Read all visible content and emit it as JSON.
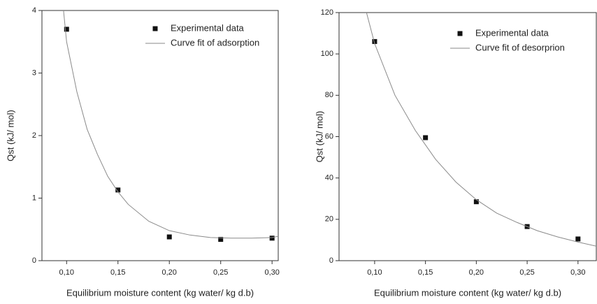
{
  "chart_data": [
    {
      "type": "scatter",
      "xlabel": "Equilibrium moisture content (kg water/ kg d.b)",
      "ylabel": "Qst (kJ/ mol)",
      "xlim": [
        0.076,
        0.306
      ],
      "ylim": [
        0,
        4
      ],
      "xticks": [
        {
          "value": 0.1,
          "label": "0,10"
        },
        {
          "value": 0.15,
          "label": "0,15"
        },
        {
          "value": 0.2,
          "label": "0,20"
        },
        {
          "value": 0.25,
          "label": "0,25"
        },
        {
          "value": 0.3,
          "label": "0,30"
        }
      ],
      "yticks": [
        0,
        1,
        2,
        3,
        4
      ],
      "legend": "upper-right",
      "series": [
        {
          "name": "Experimental data",
          "color": "#111111",
          "style": "markers",
          "x": [
            0.1,
            0.15,
            0.2,
            0.25,
            0.3
          ],
          "values": [
            3.7,
            1.13,
            0.38,
            0.34,
            0.36
          ]
        },
        {
          "name": "Curve fit of adsorption",
          "color": "#8a8a8a",
          "style": "line",
          "x": [
            0.097,
            0.1,
            0.11,
            0.12,
            0.13,
            0.14,
            0.15,
            0.16,
            0.18,
            0.2,
            0.22,
            0.24,
            0.26,
            0.28,
            0.3,
            0.306
          ],
          "values": [
            4.0,
            3.5,
            2.7,
            2.1,
            1.7,
            1.35,
            1.1,
            0.9,
            0.63,
            0.48,
            0.41,
            0.37,
            0.36,
            0.36,
            0.37,
            0.39
          ]
        }
      ]
    },
    {
      "type": "scatter",
      "xlabel": "Equilibrium moisture content (kg water/ kg d.b)",
      "ylabel": "Qst (kJ/ mol)",
      "xlim": [
        0.065,
        0.318
      ],
      "ylim": [
        0,
        120
      ],
      "xticks": [
        {
          "value": 0.1,
          "label": "0,10"
        },
        {
          "value": 0.15,
          "label": "0,15"
        },
        {
          "value": 0.2,
          "label": "0,20"
        },
        {
          "value": 0.25,
          "label": "0,25"
        },
        {
          "value": 0.3,
          "label": "0,30"
        }
      ],
      "yticks": [
        0,
        20,
        40,
        60,
        80,
        100,
        120
      ],
      "legend": "upper-right",
      "series": [
        {
          "name": "Experimental data",
          "color": "#111111",
          "style": "markers",
          "x": [
            0.1,
            0.15,
            0.2,
            0.25,
            0.3
          ],
          "values": [
            106,
            59.5,
            28.5,
            16.5,
            10.5
          ]
        },
        {
          "name": "Curve fit of desorprion",
          "color": "#8a8a8a",
          "style": "line",
          "x": [
            0.092,
            0.1,
            0.12,
            0.14,
            0.15,
            0.16,
            0.18,
            0.2,
            0.22,
            0.24,
            0.26,
            0.28,
            0.3,
            0.318
          ],
          "values": [
            120,
            105,
            80,
            63,
            56,
            49,
            38,
            29.5,
            23,
            18.5,
            14.5,
            11.5,
            9,
            7
          ]
        }
      ]
    }
  ]
}
